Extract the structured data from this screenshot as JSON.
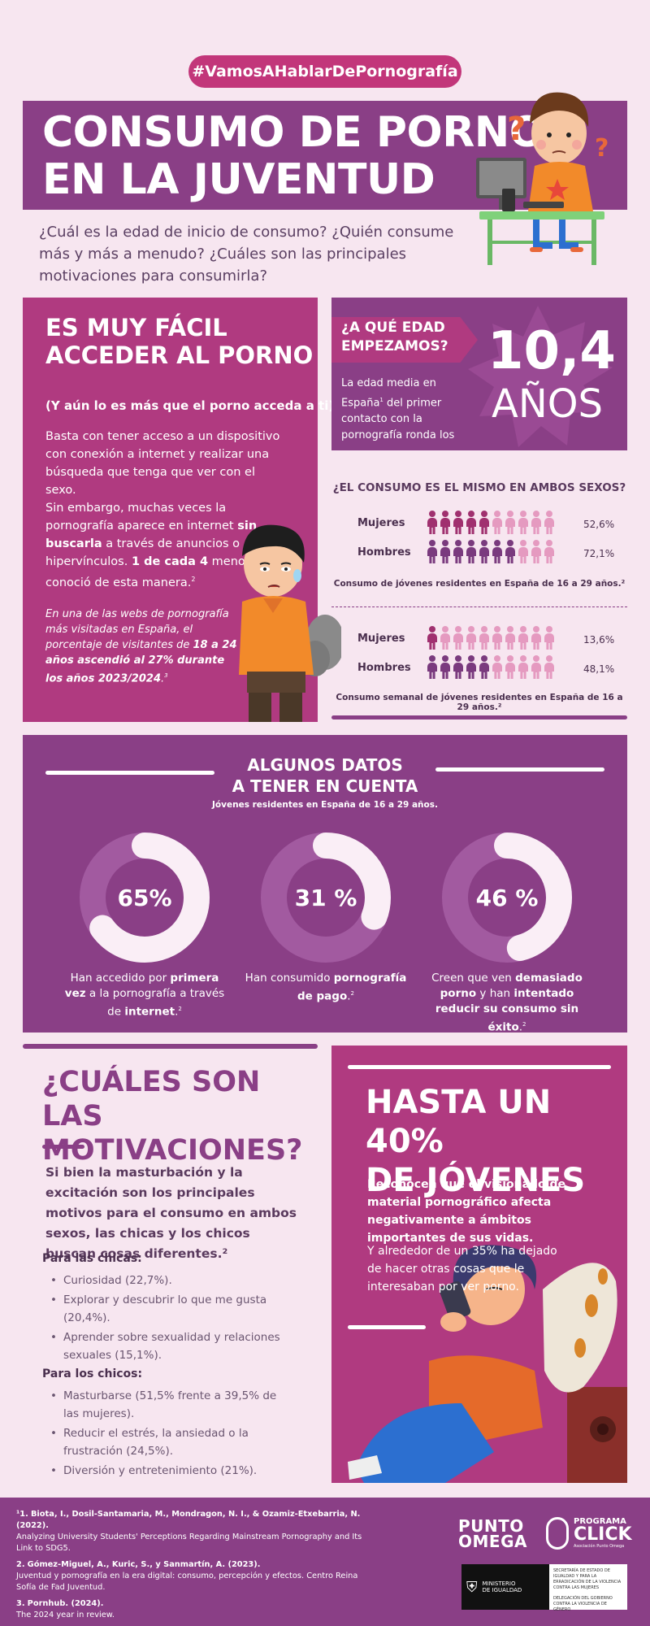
{
  "hashtag": "#VamosAHablarDePornografía",
  "hero": {
    "title_line1": "CONSUMO DE PORNO",
    "title_line2": "EN LA JUVENTUD",
    "intro": "¿Cuál es la edad de inicio de consumo? ¿Quién consume más y más a menudo? ¿Cuáles son las principales motivaciones para consumirla?"
  },
  "access": {
    "title_line1": "ES MUY FÁCIL",
    "title_line2": "ACCEDER AL PORNO",
    "subtitle": "(Y aún lo es más que el porno acceda a ti)",
    "p1": "Basta con tener acceso a un dispositivo con conexión a internet y realizar una búsqueda que tenga que ver con el sexo.",
    "p2_a": "Sin embargo, muchas veces la pornografía aparece en internet ",
    "p2_b": "sin buscarla",
    "p2_c": " a través de anuncios o hipervínculos. ",
    "p2_d": "1 de cada 4",
    "p2_e": " menores la conoció de esta manera.",
    "p2_sup": "2",
    "italic_a": "En una de las webs de pornografía más visitadas en España, el porcentaje de visitantes de ",
    "italic_b": "18 a 24 años ascendió al 27% durante los años 2023/2024",
    "italic_c": ".",
    "italic_sup": "3"
  },
  "age": {
    "tag_line1": "¿A QUÉ EDAD",
    "tag_line2": "EMPEZAMOS?",
    "desc_a": "La edad media en España",
    "desc_sup": "1",
    "desc_b": " del primer contacto con la pornografía ronda los",
    "number": "10,4",
    "unit": "AÑOS"
  },
  "sexes": {
    "title": "¿EL CONSUMO ES EL MISMO EN AMBOS SEXOS?",
    "group1": {
      "rows": [
        {
          "label": "Mujeres",
          "pct": "52,6%",
          "value": 52.6
        },
        {
          "label": "Hombres",
          "pct": "72,1%",
          "value": 72.1
        }
      ],
      "caption": "Consumo de jóvenes residentes en España de 16 a 29 años.²"
    },
    "group2": {
      "rows": [
        {
          "label": "Mujeres",
          "pct": "13,6%",
          "value": 13.6
        },
        {
          "label": "Hombres",
          "pct": "48,1%",
          "value": 48.1
        }
      ],
      "caption": "Consumo semanal de jóvenes residentes en España de 16 a 29 años.²"
    },
    "colors": {
      "women_on": "#a0306f",
      "men_on": "#7a3a7e",
      "off": "#e59ac0"
    }
  },
  "data": {
    "title_line1": "ALGUNOS DATOS",
    "title_line2": "A TENER EN CUENTA",
    "subtitle": "Jóvenes residentes en España de 16 a 29 años.",
    "donuts": [
      {
        "label": "65%",
        "value": 65,
        "t_a": "Han accedido por ",
        "t_b": "primera vez",
        "t_c": " a la pornografía a través de ",
        "t_d": "internet",
        "sup": "2"
      },
      {
        "label": "31 %",
        "value": 31,
        "t_a": "Han consumido ",
        "t_b": "pornografía de pago",
        "t_c": ".",
        "t_d": "",
        "sup": "2"
      },
      {
        "label": "46 %",
        "value": 46,
        "t_a": "Creen que ven ",
        "t_b": "demasiado porno",
        "t_c": " y han ",
        "t_d": "intentado reducir su consumo sin éxito",
        "sup": "2"
      }
    ]
  },
  "motivations": {
    "title_line1": "¿CUÁLES SON LAS",
    "title_line2": "MOTIVACIONES?",
    "intro": "Si bien la masturbación y la excitación son los principales motivos para el consumo en ambos sexos, las chicas y los chicos buscan cosas diferentes.²",
    "girls_head": "Para las chicas:",
    "girls": [
      "Curiosidad (22,7%).",
      "Explorar y descubrir lo que me gusta (20,4%).",
      "Aprender sobre sexualidad y relaciones sexuales (15,1%)."
    ],
    "boys_head": "Para los chicos:",
    "boys": [
      "Masturbarse (51,5% frente a 39,5% de las mujeres).",
      "Reducir el estrés, la ansiedad o la frustración (24,5%).",
      "Diversión y entretenimiento (21%)."
    ]
  },
  "forty": {
    "title_line1": "HASTA UN 40%",
    "title_line2": "DE JÓVENES",
    "bold": "Reconocen que el visionado de material pornográfico afecta negativamente a ámbitos importantes de sus vidas.",
    "text": "Y alrededor de un 35% ha dejado de hacer otras cosas que le interesaban por ver porno."
  },
  "refs": [
    {
      "num": "¹1.",
      "authors": "Biota, I., Dosil-Santamaria, M., Mondragon, N. I., & Ozamiz-Etxebarria, N. (2022).",
      "title": "Analyzing University Students' Perceptions Regarding Mainstream Pornography and Its Link to SDG5."
    },
    {
      "num": "2.",
      "authors": "Gómez-Miguel, A., Kuric, S., y Sanmartín, A. (2023).",
      "title": "Juventud y pornografía en la era digital: consumo, percepción y efectos. Centro Reina Sofía de Fad Juventud."
    },
    {
      "num": "3.",
      "authors": "Pornhub. (2024).",
      "title": "The 2024 year in review."
    }
  ],
  "logos": {
    "punto_line1": "PUNTO",
    "punto_line2": "OMEGA",
    "click_line1": "PROGRAMA",
    "click_line2": "CLICK",
    "click_sub": "Asociación Punto Omega",
    "ministry_line1": "MINISTERIO",
    "ministry_line2": "DE IGUALDAD",
    "sec1": "SECRETARÍA DE ESTADO DE IGUALDAD Y PARA LA ERRADICACIÓN DE LA VIOLENCIA CONTRA LAS MUJERES",
    "sec2": "DELEGACIÓN DEL GOBIERNO CONTRA LA VIOLENCIA DE GÉNERO"
  }
}
